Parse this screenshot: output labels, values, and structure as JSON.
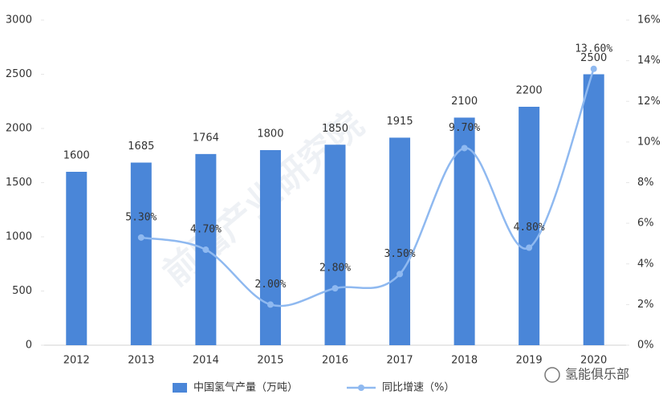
{
  "chart_data": {
    "type": "bar",
    "categories": [
      "2012",
      "2013",
      "2014",
      "2015",
      "2016",
      "2017",
      "2018",
      "2019",
      "2020"
    ],
    "series": [
      {
        "name": "中国氢气产量（万吨）",
        "color": "#4a86d8",
        "values": [
          1600,
          1685,
          1764,
          1800,
          1850,
          1915,
          2100,
          2200,
          2500
        ]
      },
      {
        "name": "同比增速（%）",
        "type": "line",
        "axis": "y2",
        "color": "#8fb9f0",
        "values": [
          null,
          5.3,
          4.7,
          2.0,
          2.8,
          3.5,
          9.7,
          4.8,
          13.6
        ],
        "value_labels": [
          null,
          "5.30%",
          "4.70%",
          "2.00%",
          "2.80%",
          "3.50%",
          "9.70%",
          "4.80%",
          "13.60%"
        ]
      }
    ],
    "ylim": [
      0,
      3000
    ],
    "yticks": [
      0,
      500,
      1000,
      1500,
      2000,
      2500,
      3000
    ],
    "y2lim": [
      0,
      16
    ],
    "y2ticks": [
      {
        "value": 0,
        "label": "0%"
      },
      {
        "value": 2,
        "label": "2%"
      },
      {
        "value": 4,
        "label": "4%"
      },
      {
        "value": 6,
        "label": "6%"
      },
      {
        "value": 8,
        "label": "8%"
      },
      {
        "value": 10,
        "label": "10%"
      },
      {
        "value": 12,
        "label": "12%"
      },
      {
        "value": 14,
        "label": "14%"
      },
      {
        "value": 16,
        "label": "16%"
      }
    ],
    "watermark": "氢能俱乐部",
    "source_watermark": "前瞻产业研究院"
  }
}
